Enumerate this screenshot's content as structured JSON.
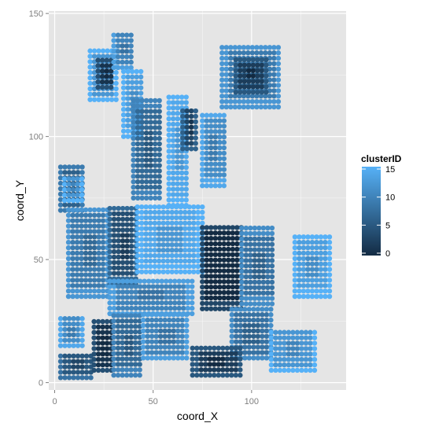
{
  "chart_data": {
    "type": "scatter",
    "xlabel": "coord_X",
    "ylabel": "coord_Y",
    "xlim": [
      -3,
      148
    ],
    "ylim": [
      -3,
      151
    ],
    "x_ticks": [
      0,
      50,
      100
    ],
    "y_ticks": [
      0,
      50,
      100,
      150
    ],
    "x_tick_labels": [
      "0",
      "50",
      "100"
    ],
    "y_tick_labels": [
      "0",
      "50",
      "100",
      "150"
    ],
    "grid": true,
    "panel_background": "#e5e5e5",
    "grid_color": "#ffffff",
    "color_scale": {
      "variable": "clusterID",
      "low": 0,
      "high": 15,
      "low_color": "#132b43",
      "high_color": "#56b1f7",
      "ticks": [
        0,
        5,
        10,
        15
      ],
      "tick_labels": [
        "0",
        "5",
        "10",
        "15"
      ]
    },
    "legend_position": "right",
    "regions": [
      {
        "x": [
          85,
          115
        ],
        "y": [
          112,
          138
        ],
        "cluster": 9
      },
      {
        "x": [
          92,
          108
        ],
        "y": [
          118,
          132
        ],
        "cluster": 2
      },
      {
        "x": [
          18,
          32
        ],
        "y": [
          115,
          135
        ],
        "cluster": 12
      },
      {
        "x": [
          22,
          30
        ],
        "y": [
          120,
          132
        ],
        "cluster": 1
      },
      {
        "x": [
          30,
          40
        ],
        "y": [
          128,
          143
        ],
        "cluster": 10
      },
      {
        "x": [
          35,
          45
        ],
        "y": [
          100,
          128
        ],
        "cluster": 13
      },
      {
        "x": [
          40,
          55
        ],
        "y": [
          75,
          115
        ],
        "cluster": 7
      },
      {
        "x": [
          58,
          68
        ],
        "y": [
          72,
          118
        ],
        "cluster": 14
      },
      {
        "x": [
          65,
          72
        ],
        "y": [
          95,
          112
        ],
        "cluster": 3
      },
      {
        "x": [
          75,
          88
        ],
        "y": [
          80,
          110
        ],
        "cluster": 11
      },
      {
        "x": [
          3,
          15
        ],
        "y": [
          70,
          88
        ],
        "cluster": 6
      },
      {
        "x": [
          5,
          14
        ],
        "y": [
          74,
          84
        ],
        "cluster": 12
      },
      {
        "x": [
          7,
          28
        ],
        "y": [
          35,
          72
        ],
        "cluster": 9
      },
      {
        "x": [
          28,
          42
        ],
        "y": [
          40,
          72
        ],
        "cluster": 4
      },
      {
        "x": [
          42,
          75
        ],
        "y": [
          45,
          72
        ],
        "cluster": 14
      },
      {
        "x": [
          75,
          95
        ],
        "y": [
          30,
          65
        ],
        "cluster": 0
      },
      {
        "x": [
          95,
          112
        ],
        "y": [
          32,
          63
        ],
        "cluster": 8
      },
      {
        "x": [
          122,
          140
        ],
        "y": [
          35,
          60
        ],
        "cluster": 13
      },
      {
        "x": [
          28,
          70
        ],
        "y": [
          28,
          42
        ],
        "cluster": 10
      },
      {
        "x": [
          90,
          110
        ],
        "y": [
          10,
          30
        ],
        "cluster": 8
      },
      {
        "x": [
          110,
          132
        ],
        "y": [
          5,
          22
        ],
        "cluster": 12
      },
      {
        "x": [
          70,
          95
        ],
        "y": [
          3,
          15
        ],
        "cluster": 2
      },
      {
        "x": [
          3,
          20
        ],
        "y": [
          2,
          12
        ],
        "cluster": 5
      },
      {
        "x": [
          3,
          15
        ],
        "y": [
          15,
          28
        ],
        "cluster": 11
      },
      {
        "x": [
          20,
          30
        ],
        "y": [
          5,
          25
        ],
        "cluster": 1
      },
      {
        "x": [
          30,
          45
        ],
        "y": [
          3,
          28
        ],
        "cluster": 7
      },
      {
        "x": [
          45,
          68
        ],
        "y": [
          10,
          28
        ],
        "cluster": 10
      }
    ]
  }
}
